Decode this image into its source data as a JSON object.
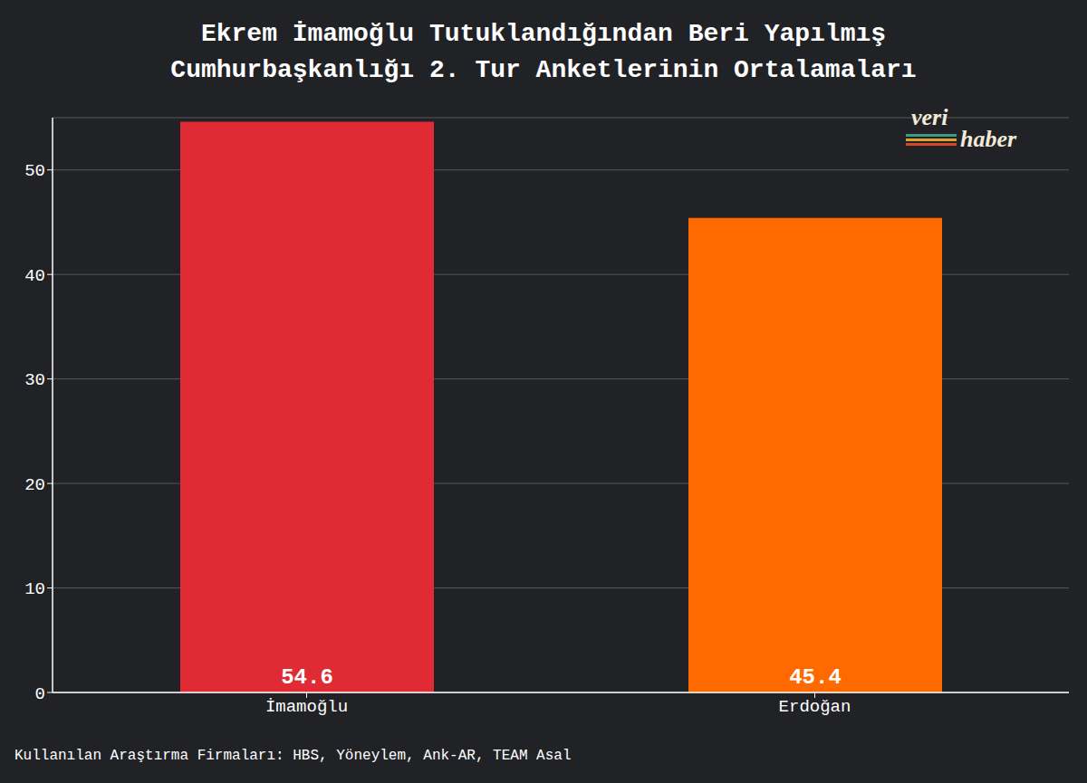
{
  "chart_data": {
    "type": "bar",
    "title": "Ekrem İmamoğlu Tutuklandığından Beri Yapılmış Cumhurbaşkanlığı 2. Tur Anketlerinin Ortalamaları",
    "categories": [
      "İmamoğlu",
      "Erdoğan"
    ],
    "values": [
      54.6,
      45.4
    ],
    "colors": [
      "#e02b35",
      "#ff6a00"
    ],
    "ylim": [
      0,
      55
    ],
    "yticks": [
      0,
      10,
      20,
      30,
      40,
      50
    ],
    "grid": true,
    "data_labels": true,
    "source": "Kullanılan Araştırma Firmaları: HBS, Yöneylem, Ank-AR, TEAM Asal",
    "watermark": "veri haber"
  }
}
